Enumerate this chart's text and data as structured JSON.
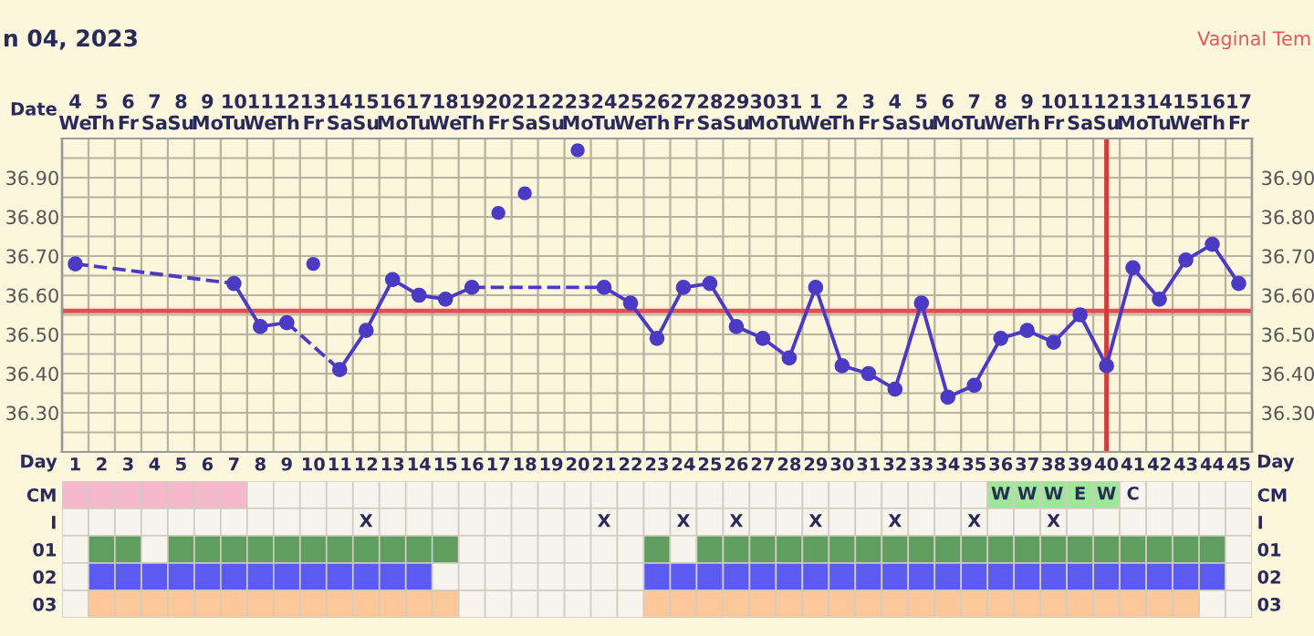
{
  "chart_data": [
    {
      "type": "line",
      "title": "n 04, 2023",
      "xlabel": "Day",
      "x2label": "Date",
      "annotations": [
        "Vaginal Tem"
      ],
      "x": [
        1,
        2,
        3,
        4,
        5,
        6,
        7,
        8,
        9,
        10,
        11,
        12,
        13,
        14,
        15,
        16,
        17,
        18,
        19,
        20,
        21,
        22,
        23,
        24,
        25,
        26,
        27,
        28,
        29,
        30,
        31,
        32,
        33,
        34,
        35,
        36,
        37,
        38,
        39,
        40,
        41,
        42,
        43,
        44,
        45
      ],
      "xlim": [
        0.5,
        45.5
      ],
      "xticks": [
        1,
        2,
        3,
        4,
        5,
        6,
        7,
        8,
        9,
        10,
        11,
        12,
        13,
        14,
        15,
        16,
        17,
        18,
        19,
        20,
        21,
        22,
        23,
        24,
        25,
        26,
        27,
        28,
        29,
        30,
        31,
        32,
        33,
        34,
        35,
        36,
        37,
        38,
        39,
        40,
        41,
        42,
        43,
        44,
        45
      ],
      "x2lim": [
        "2023-01-03T12:00",
        "2023-02-17T12:00"
      ],
      "x2ticks": [
        {
          "value": "2023-01-04",
          "label": "4\nWe"
        },
        {
          "value": "2023-01-05",
          "label": "5\nTh"
        },
        {
          "value": "2023-01-06",
          "label": "6\nFr"
        },
        {
          "value": "2023-01-07",
          "label": "7\nSa"
        },
        {
          "value": "2023-01-08",
          "label": "8\nSu"
        },
        {
          "value": "2023-01-09",
          "label": "9\nMo"
        },
        {
          "value": "2023-01-10",
          "label": "10\nTu"
        },
        {
          "value": "2023-01-11",
          "label": "11\nWe"
        },
        {
          "value": "2023-01-12",
          "label": "12\nTh"
        },
        {
          "value": "2023-01-13",
          "label": "13\nFr"
        },
        {
          "value": "2023-01-14",
          "label": "14\nSa"
        },
        {
          "value": "2023-01-15",
          "label": "15\nSu"
        },
        {
          "value": "2023-01-16",
          "label": "16\nMo"
        },
        {
          "value": "2023-01-17",
          "label": "17\nTu"
        },
        {
          "value": "2023-01-18",
          "label": "18\nWe"
        },
        {
          "value": "2023-01-19",
          "label": "19\nTh"
        },
        {
          "value": "2023-01-20",
          "label": "20\nFr"
        },
        {
          "value": "2023-01-21",
          "label": "21\nSa"
        },
        {
          "value": "2023-01-22",
          "label": "22\nSu"
        },
        {
          "value": "2023-01-23",
          "label": "23\nMo"
        },
        {
          "value": "2023-01-24",
          "label": "24\nTu"
        },
        {
          "value": "2023-01-25",
          "label": "25\nWe"
        },
        {
          "value": "2023-01-26",
          "label": "26\nTh"
        },
        {
          "value": "2023-01-27",
          "label": "27\nFr"
        },
        {
          "value": "2023-01-28",
          "label": "28\nSa"
        },
        {
          "value": "2023-01-29",
          "label": "29\nSu"
        },
        {
          "value": "2023-01-30",
          "label": "30\nMo"
        },
        {
          "value": "2023-01-31",
          "label": "31\nTu"
        },
        {
          "value": "2023-02-01",
          "label": "1\nWe"
        },
        {
          "value": "2023-02-02",
          "label": "2\nTh"
        },
        {
          "value": "2023-02-03",
          "label": "3\nFr"
        },
        {
          "value": "2023-02-04",
          "label": "4\nSa"
        },
        {
          "value": "2023-02-05",
          "label": "5\nSu"
        },
        {
          "value": "2023-02-06",
          "label": "6\nMo"
        },
        {
          "value": "2023-02-07",
          "label": "7\nTu"
        },
        {
          "value": "2023-02-08",
          "label": "8\nWe"
        },
        {
          "value": "2023-02-09",
          "label": "9\nTh"
        },
        {
          "value": "2023-02-10",
          "label": "10\nFr"
        },
        {
          "value": "2023-02-11",
          "label": "11\nSa"
        },
        {
          "value": "2023-02-12",
          "label": "12\nSu"
        },
        {
          "value": "2023-02-13",
          "label": "13\nMo"
        },
        {
          "value": "2023-02-14",
          "label": "14\nTu"
        },
        {
          "value": "2023-02-15",
          "label": "15\nWe"
        },
        {
          "value": "2023-02-16",
          "label": "16\nTh"
        },
        {
          "value": "2023-02-17",
          "label": "17\nFr"
        }
      ],
      "series": [
        {
          "type": "line",
          "color": "#4b3bc4",
          "values": [
            36.68,
            null,
            null,
            null,
            null,
            null,
            36.63,
            36.52,
            36.53,
            null,
            36.41,
            36.51,
            36.64,
            36.6,
            36.59,
            36.62,
            null,
            null,
            null,
            null,
            36.62,
            36.58,
            36.49,
            36.62,
            36.63,
            36.52,
            36.49,
            36.44,
            36.62,
            36.42,
            36.4,
            36.36,
            36.58,
            36.34,
            36.37,
            36.49,
            36.51,
            36.48,
            36.55,
            36.42,
            36.67,
            36.59,
            36.69,
            36.73,
            36.63
          ]
        },
        {
          "type": "scatter",
          "color": "#4b3bc4",
          "values": [
            null,
            null,
            null,
            null,
            null,
            null,
            null,
            null,
            null,
            36.68,
            null,
            null,
            null,
            null,
            null,
            null,
            36.81,
            36.86,
            null,
            36.97,
            null,
            null,
            null,
            null,
            null,
            null,
            null,
            null,
            null,
            null,
            null,
            null,
            null,
            null,
            null,
            null,
            null,
            null,
            null,
            null,
            null,
            null,
            null,
            null,
            null
          ]
        }
      ],
      "marker": "circle",
      "line_style": "solid",
      "ylim": [
        36.2,
        37.0
      ],
      "yticks": [
        {
          "value": 36.3,
          "label": "36.30"
        },
        {
          "value": 36.4,
          "label": "36.40"
        },
        {
          "value": 36.5,
          "label": "36.50"
        },
        {
          "value": 36.6,
          "label": "36.60"
        },
        {
          "value": 36.7,
          "label": "36.70"
        },
        {
          "value": 36.8,
          "label": "36.80"
        },
        {
          "value": 36.9,
          "label": "36.90"
        }
      ],
      "y2lim": [
        36.2,
        37.0
      ],
      "y2ticks": [
        {
          "value": 36.3,
          "label": "36.30"
        },
        {
          "value": 36.4,
          "label": "36.40"
        },
        {
          "value": 36.5,
          "label": "36.50"
        },
        {
          "value": 36.6,
          "label": "36.60"
        },
        {
          "value": 36.7,
          "label": "36.70"
        },
        {
          "value": 36.8,
          "label": "36.80"
        },
        {
          "value": 36.9,
          "label": "36.90"
        }
      ],
      "grid": true,
      "ref_lines": [
        {
          "axis": "y",
          "value": 36.56,
          "color": "#e05050"
        },
        {
          "axis": "x",
          "value": 40,
          "color": "#d83a3a"
        }
      ]
    },
    {
      "type": "other",
      "y_categories": [
        "CM",
        "I",
        "01",
        "02",
        "03"
      ],
      "y2_categories": [
        "CM",
        "I",
        "01",
        "02",
        "03"
      ],
      "colors": [
        [
          "#f5b8cc",
          "#f5b8cc",
          "#f5b8cc",
          "#f5b8cc",
          "#f5b8cc",
          "#f5b8cc",
          "#f5b8cc",
          null,
          null,
          null,
          null,
          null,
          null,
          null,
          null,
          null,
          null,
          null,
          null,
          null,
          null,
          null,
          null,
          null,
          null,
          null,
          null,
          null,
          null,
          null,
          null,
          null,
          null,
          null,
          null,
          "#9ee89a",
          "#9ee89a",
          "#9ee89a",
          "#9ee89a",
          "#9ee89a",
          null,
          null,
          null,
          null,
          null
        ],
        [
          null,
          null,
          null,
          null,
          null,
          null,
          null,
          null,
          null,
          null,
          null,
          null,
          null,
          null,
          null,
          null,
          null,
          null,
          null,
          null,
          null,
          null,
          null,
          null,
          null,
          null,
          null,
          null,
          null,
          null,
          null,
          null,
          null,
          null,
          null,
          null,
          null,
          null,
          null,
          null,
          null,
          null,
          null,
          null,
          null
        ],
        [
          null,
          "#5f9e5f",
          "#5f9e5f",
          null,
          "#5f9e5f",
          "#5f9e5f",
          "#5f9e5f",
          "#5f9e5f",
          "#5f9e5f",
          "#5f9e5f",
          "#5f9e5f",
          "#5f9e5f",
          "#5f9e5f",
          "#5f9e5f",
          "#5f9e5f",
          null,
          null,
          null,
          null,
          null,
          null,
          null,
          "#5f9e5f",
          null,
          "#5f9e5f",
          "#5f9e5f",
          "#5f9e5f",
          "#5f9e5f",
          "#5f9e5f",
          "#5f9e5f",
          "#5f9e5f",
          "#5f9e5f",
          "#5f9e5f",
          "#5f9e5f",
          "#5f9e5f",
          "#5f9e5f",
          "#5f9e5f",
          "#5f9e5f",
          "#5f9e5f",
          "#5f9e5f",
          "#5f9e5f",
          "#5f9e5f",
          "#5f9e5f",
          "#5f9e5f",
          null
        ],
        [
          null,
          "#5b5bf0",
          "#5b5bf0",
          "#5b5bf0",
          "#5b5bf0",
          "#5b5bf0",
          "#5b5bf0",
          "#5b5bf0",
          "#5b5bf0",
          "#5b5bf0",
          "#5b5bf0",
          "#5b5bf0",
          "#5b5bf0",
          "#5b5bf0",
          null,
          null,
          null,
          null,
          null,
          null,
          null,
          null,
          "#5b5bf0",
          "#5b5bf0",
          "#5b5bf0",
          "#5b5bf0",
          "#5b5bf0",
          "#5b5bf0",
          "#5b5bf0",
          "#5b5bf0",
          "#5b5bf0",
          "#5b5bf0",
          "#5b5bf0",
          "#5b5bf0",
          "#5b5bf0",
          "#5b5bf0",
          "#5b5bf0",
          "#5b5bf0",
          "#5b5bf0",
          "#5b5bf0",
          "#5b5bf0",
          "#5b5bf0",
          "#5b5bf0",
          "#5b5bf0",
          null
        ],
        [
          null,
          "#fcc89a",
          "#fcc89a",
          "#fcc89a",
          "#fcc89a",
          "#fcc89a",
          "#fcc89a",
          "#fcc89a",
          "#fcc89a",
          "#fcc89a",
          "#fcc89a",
          "#fcc89a",
          "#fcc89a",
          "#fcc89a",
          "#fcc89a",
          null,
          null,
          null,
          null,
          null,
          null,
          null,
          "#fcc89a",
          "#fcc89a",
          "#fcc89a",
          "#fcc89a",
          "#fcc89a",
          "#fcc89a",
          "#fcc89a",
          "#fcc89a",
          "#fcc89a",
          "#fcc89a",
          "#fcc89a",
          "#fcc89a",
          "#fcc89a",
          "#fcc89a",
          "#fcc89a",
          "#fcc89a",
          "#fcc89a",
          "#fcc89a",
          "#fcc89a",
          "#fcc89a",
          "#fcc89a",
          null,
          null
        ]
      ],
      "cell_labels": [
        [
          null,
          null,
          null,
          null,
          null,
          null,
          null,
          null,
          null,
          null,
          null,
          null,
          null,
          null,
          null,
          null,
          null,
          null,
          null,
          null,
          null,
          null,
          null,
          null,
          null,
          null,
          null,
          null,
          null,
          null,
          null,
          null,
          null,
          null,
          null,
          "W",
          "W",
          "W",
          "E",
          "W",
          "C",
          null,
          null,
          null,
          null
        ],
        [
          null,
          null,
          null,
          null,
          null,
          null,
          null,
          null,
          null,
          null,
          null,
          "X",
          null,
          null,
          null,
          null,
          null,
          null,
          null,
          null,
          "X",
          null,
          null,
          "X",
          null,
          "X",
          null,
          null,
          "X",
          null,
          null,
          "X",
          null,
          null,
          "X",
          null,
          null,
          "X",
          null,
          null,
          null,
          null,
          null,
          null,
          null
        ],
        [
          null,
          null,
          null,
          null,
          null,
          null,
          null,
          null,
          null,
          null,
          null,
          null,
          null,
          null,
          null,
          null,
          null,
          null,
          null,
          null,
          null,
          null,
          null,
          null,
          null,
          null,
          null,
          null,
          null,
          null,
          null,
          null,
          null,
          null,
          null,
          null,
          null,
          null,
          null,
          null,
          null,
          null,
          null,
          null,
          null
        ],
        [
          null,
          null,
          null,
          null,
          null,
          null,
          null,
          null,
          null,
          null,
          null,
          null,
          null,
          null,
          null,
          null,
          null,
          null,
          null,
          null,
          null,
          null,
          null,
          null,
          null,
          null,
          null,
          null,
          null,
          null,
          null,
          null,
          null,
          null,
          null,
          null,
          null,
          null,
          null,
          null,
          null,
          null,
          null,
          null,
          null
        ],
        [
          null,
          null,
          null,
          null,
          null,
          null,
          null,
          null,
          null,
          null,
          null,
          null,
          null,
          null,
          null,
          null,
          null,
          null,
          null,
          null,
          null,
          null,
          null,
          null,
          null,
          null,
          null,
          null,
          null,
          null,
          null,
          null,
          null,
          null,
          null,
          null,
          null,
          null,
          null,
          null,
          null,
          null,
          null,
          null,
          null
        ]
      ]
    }
  ]
}
